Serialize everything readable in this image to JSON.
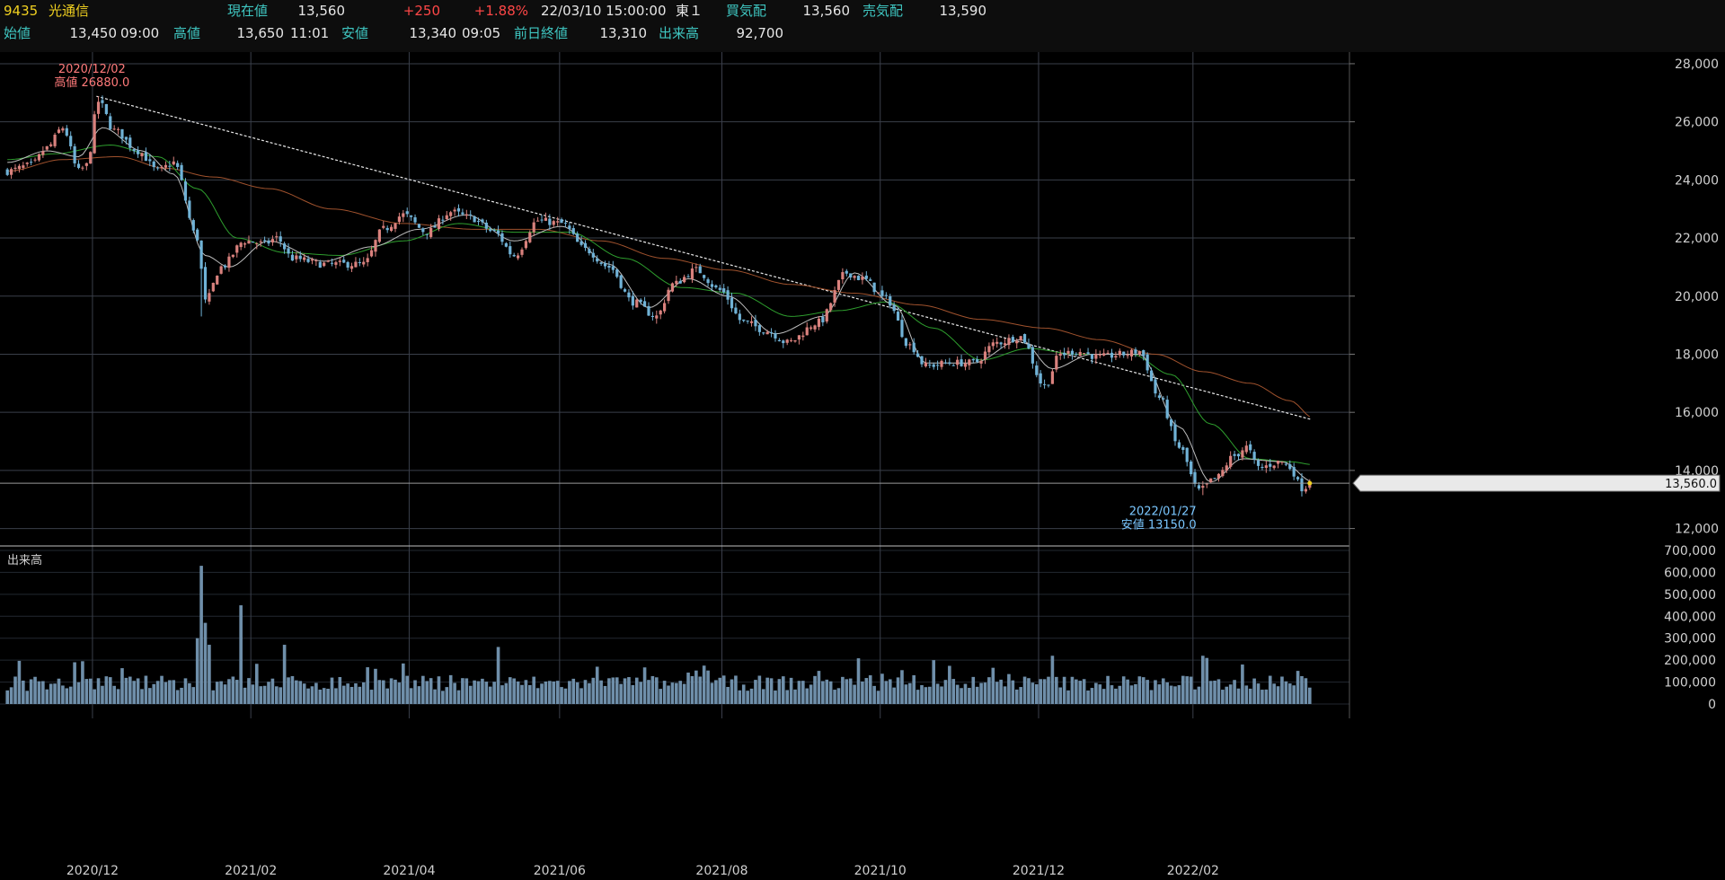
{
  "quote": {
    "code": "9435",
    "name": "光通信",
    "current_label": "現在値",
    "current": "13,560",
    "change": "+250",
    "change_pct": "+1.88%",
    "datetime": "22/03/10  15:00:00",
    "market": "東１",
    "bid_label": "買気配",
    "bid": "13,560",
    "ask_label": "売気配",
    "ask": "13,590",
    "open_label": "始値",
    "open": "13,450",
    "open_time": "09:00",
    "high_label": "高値",
    "high": "13,650",
    "high_time": "11:01",
    "low_label": "安値",
    "low": "13,340",
    "low_time": "09:05",
    "prev_close_label": "前日終値",
    "prev_close": "13,310",
    "volume_label": "出来高",
    "volume": "92,700"
  },
  "colors": {
    "up": "#d9817d",
    "down": "#70b2d6",
    "ma_short": "#bdbdbd",
    "ma_mid": "#2e9e2e",
    "ma_long": "#a0522d",
    "trendline": "#e8e8e8",
    "volume": "#6f8faa",
    "grid": "#3a3f4a",
    "axis_text": "#d0d0d0",
    "high_label": "#ff7a7a",
    "low_label": "#7ac7ff"
  },
  "chart_data": {
    "type": "candlestick",
    "price_axis": {
      "min": 11400,
      "max": 28400,
      "ticks": [
        12000,
        14000,
        16000,
        18000,
        20000,
        22000,
        24000,
        26000,
        28000
      ],
      "tick_labels": [
        "12,000",
        "14,000",
        "16,000",
        "18,000",
        "20,000",
        "22,000",
        "24,000",
        "26,000",
        "28,000"
      ]
    },
    "volume_axis": {
      "label": "出来高",
      "min": 0,
      "max": 700000,
      "ticks": [
        0,
        100000,
        200000,
        300000,
        400000,
        500000,
        600000,
        700000
      ],
      "tick_labels": [
        "0",
        "100,000",
        "200,000",
        "300,000",
        "400,000",
        "500,000",
        "600,000",
        "700,000"
      ]
    },
    "x_labels": [
      "2020/12",
      "2021/02",
      "2021/04",
      "2021/06",
      "2021/08",
      "2021/10",
      "2021/12",
      "2022/02"
    ],
    "x_label_index": [
      22,
      62,
      102,
      140,
      181,
      221,
      261,
      300
    ],
    "total_days": 330,
    "last_price_marker": "13,560.0",
    "last_price": 13560,
    "annotations": [
      {
        "date": "2020/12/02",
        "text": "高値 26880.0",
        "value": 26880,
        "index": 23,
        "kind": "high"
      },
      {
        "date": "2022/01/27",
        "text": "安値 13150.0",
        "value": 13150,
        "index": 302,
        "kind": "low"
      }
    ],
    "trendline": {
      "from": {
        "index": 23,
        "value": 26880
      },
      "to": {
        "index": 330,
        "value": 15750
      }
    },
    "close_anchors": [
      [
        0,
        24300
      ],
      [
        6,
        24500
      ],
      [
        10,
        25100
      ],
      [
        14,
        25800
      ],
      [
        18,
        24300
      ],
      [
        20,
        24500
      ],
      [
        23,
        26700
      ],
      [
        27,
        25700
      ],
      [
        33,
        25000
      ],
      [
        38,
        24300
      ],
      [
        42,
        24600
      ],
      [
        48,
        22000
      ],
      [
        50,
        19800
      ],
      [
        54,
        21000
      ],
      [
        60,
        21900
      ],
      [
        65,
        21800
      ],
      [
        68,
        22000
      ],
      [
        72,
        21300
      ],
      [
        80,
        21100
      ],
      [
        90,
        21100
      ],
      [
        95,
        22300
      ],
      [
        100,
        22800
      ],
      [
        106,
        22200
      ],
      [
        112,
        22900
      ],
      [
        117,
        22700
      ],
      [
        123,
        22200
      ],
      [
        128,
        21400
      ],
      [
        134,
        22600
      ],
      [
        140,
        22500
      ],
      [
        146,
        21600
      ],
      [
        152,
        21000
      ],
      [
        158,
        19800
      ],
      [
        164,
        19300
      ],
      [
        168,
        20400
      ],
      [
        174,
        20900
      ],
      [
        180,
        20200
      ],
      [
        186,
        19100
      ],
      [
        192,
        18800
      ],
      [
        197,
        18400
      ],
      [
        205,
        19100
      ],
      [
        212,
        20800
      ],
      [
        216,
        20600
      ],
      [
        222,
        19900
      ],
      [
        228,
        18300
      ],
      [
        232,
        17600
      ],
      [
        238,
        17700
      ],
      [
        244,
        17700
      ],
      [
        250,
        18400
      ],
      [
        256,
        18600
      ],
      [
        262,
        16900
      ],
      [
        266,
        18000
      ],
      [
        270,
        18100
      ],
      [
        276,
        17900
      ],
      [
        282,
        18000
      ],
      [
        286,
        18100
      ],
      [
        291,
        16500
      ],
      [
        296,
        14800
      ],
      [
        301,
        13300
      ],
      [
        305,
        13700
      ],
      [
        310,
        14500
      ],
      [
        313,
        14800
      ],
      [
        316,
        14100
      ],
      [
        322,
        14300
      ],
      [
        324,
        14100
      ],
      [
        327,
        13400
      ],
      [
        330,
        13560
      ]
    ],
    "ma_short_anchors": [
      [
        0,
        24600
      ],
      [
        10,
        25000
      ],
      [
        18,
        24800
      ],
      [
        24,
        25800
      ],
      [
        34,
        25000
      ],
      [
        42,
        24200
      ],
      [
        50,
        21400
      ],
      [
        56,
        21000
      ],
      [
        66,
        21900
      ],
      [
        80,
        21200
      ],
      [
        92,
        21700
      ],
      [
        104,
        22300
      ],
      [
        116,
        22800
      ],
      [
        128,
        21900
      ],
      [
        140,
        22400
      ],
      [
        152,
        21100
      ],
      [
        162,
        19600
      ],
      [
        172,
        20600
      ],
      [
        182,
        20000
      ],
      [
        194,
        18700
      ],
      [
        206,
        19300
      ],
      [
        214,
        20800
      ],
      [
        224,
        19700
      ],
      [
        232,
        17700
      ],
      [
        244,
        17700
      ],
      [
        256,
        18500
      ],
      [
        264,
        17500
      ],
      [
        274,
        18000
      ],
      [
        286,
        18000
      ],
      [
        296,
        15500
      ],
      [
        304,
        13600
      ],
      [
        312,
        14400
      ],
      [
        322,
        14300
      ],
      [
        330,
        13600
      ]
    ],
    "ma_mid_anchors": [
      [
        0,
        24700
      ],
      [
        12,
        24900
      ],
      [
        26,
        25200
      ],
      [
        38,
        24800
      ],
      [
        48,
        23700
      ],
      [
        58,
        22000
      ],
      [
        70,
        21500
      ],
      [
        84,
        21400
      ],
      [
        100,
        21900
      ],
      [
        114,
        22500
      ],
      [
        128,
        22200
      ],
      [
        142,
        22200
      ],
      [
        156,
        21300
      ],
      [
        170,
        20300
      ],
      [
        184,
        20100
      ],
      [
        198,
        19300
      ],
      [
        210,
        19500
      ],
      [
        222,
        19800
      ],
      [
        234,
        18900
      ],
      [
        246,
        17800
      ],
      [
        258,
        18200
      ],
      [
        270,
        18000
      ],
      [
        284,
        18000
      ],
      [
        294,
        17300
      ],
      [
        304,
        15600
      ],
      [
        314,
        14400
      ],
      [
        324,
        14300
      ],
      [
        330,
        14200
      ]
    ],
    "ma_long_anchors": [
      [
        0,
        24300
      ],
      [
        14,
        24700
      ],
      [
        28,
        24800
      ],
      [
        40,
        24400
      ],
      [
        52,
        24100
      ],
      [
        66,
        23700
      ],
      [
        82,
        23000
      ],
      [
        100,
        22500
      ],
      [
        118,
        22300
      ],
      [
        134,
        22300
      ],
      [
        150,
        21900
      ],
      [
        166,
        21300
      ],
      [
        182,
        20900
      ],
      [
        198,
        20400
      ],
      [
        214,
        20100
      ],
      [
        230,
        19700
      ],
      [
        246,
        19200
      ],
      [
        262,
        18900
      ],
      [
        276,
        18500
      ],
      [
        290,
        18000
      ],
      [
        302,
        17400
      ],
      [
        314,
        17000
      ],
      [
        324,
        16400
      ],
      [
        330,
        15800
      ]
    ],
    "volume_spikes": [
      [
        48,
        300000
      ],
      [
        49,
        630000
      ],
      [
        50,
        370000
      ],
      [
        51,
        270000
      ],
      [
        59,
        450000
      ],
      [
        70,
        270000
      ],
      [
        124,
        260000
      ],
      [
        234,
        200000
      ],
      [
        264,
        220000
      ],
      [
        302,
        220000
      ],
      [
        303,
        210000
      ],
      [
        312,
        180000
      ]
    ]
  }
}
